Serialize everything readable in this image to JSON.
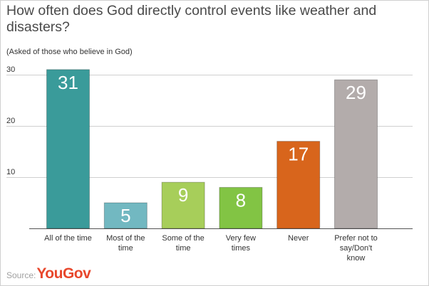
{
  "title": "How often does God directly control events like weather and disasters?",
  "subtitle": "(Asked of those who believe in God)",
  "source": {
    "label": "Source:",
    "brand": "YouGov"
  },
  "chart_data": {
    "type": "bar",
    "categories": [
      [
        "All of the time"
      ],
      [
        "Most of the",
        "time"
      ],
      [
        "Some of the",
        "time"
      ],
      [
        "Very few",
        "times"
      ],
      [
        "Never"
      ],
      [
        "Prefer not to",
        "say/Don't",
        "know"
      ]
    ],
    "values": [
      31,
      5,
      9,
      8,
      17,
      29
    ],
    "colors": [
      "#3a9b9a",
      "#72b8c1",
      "#a7ce5a",
      "#82c444",
      "#d8651c",
      "#b3acab"
    ],
    "yticks": [
      10,
      20,
      30
    ],
    "ylim": [
      0,
      34
    ],
    "grid": true,
    "xlabel": "",
    "ylabel": ""
  }
}
